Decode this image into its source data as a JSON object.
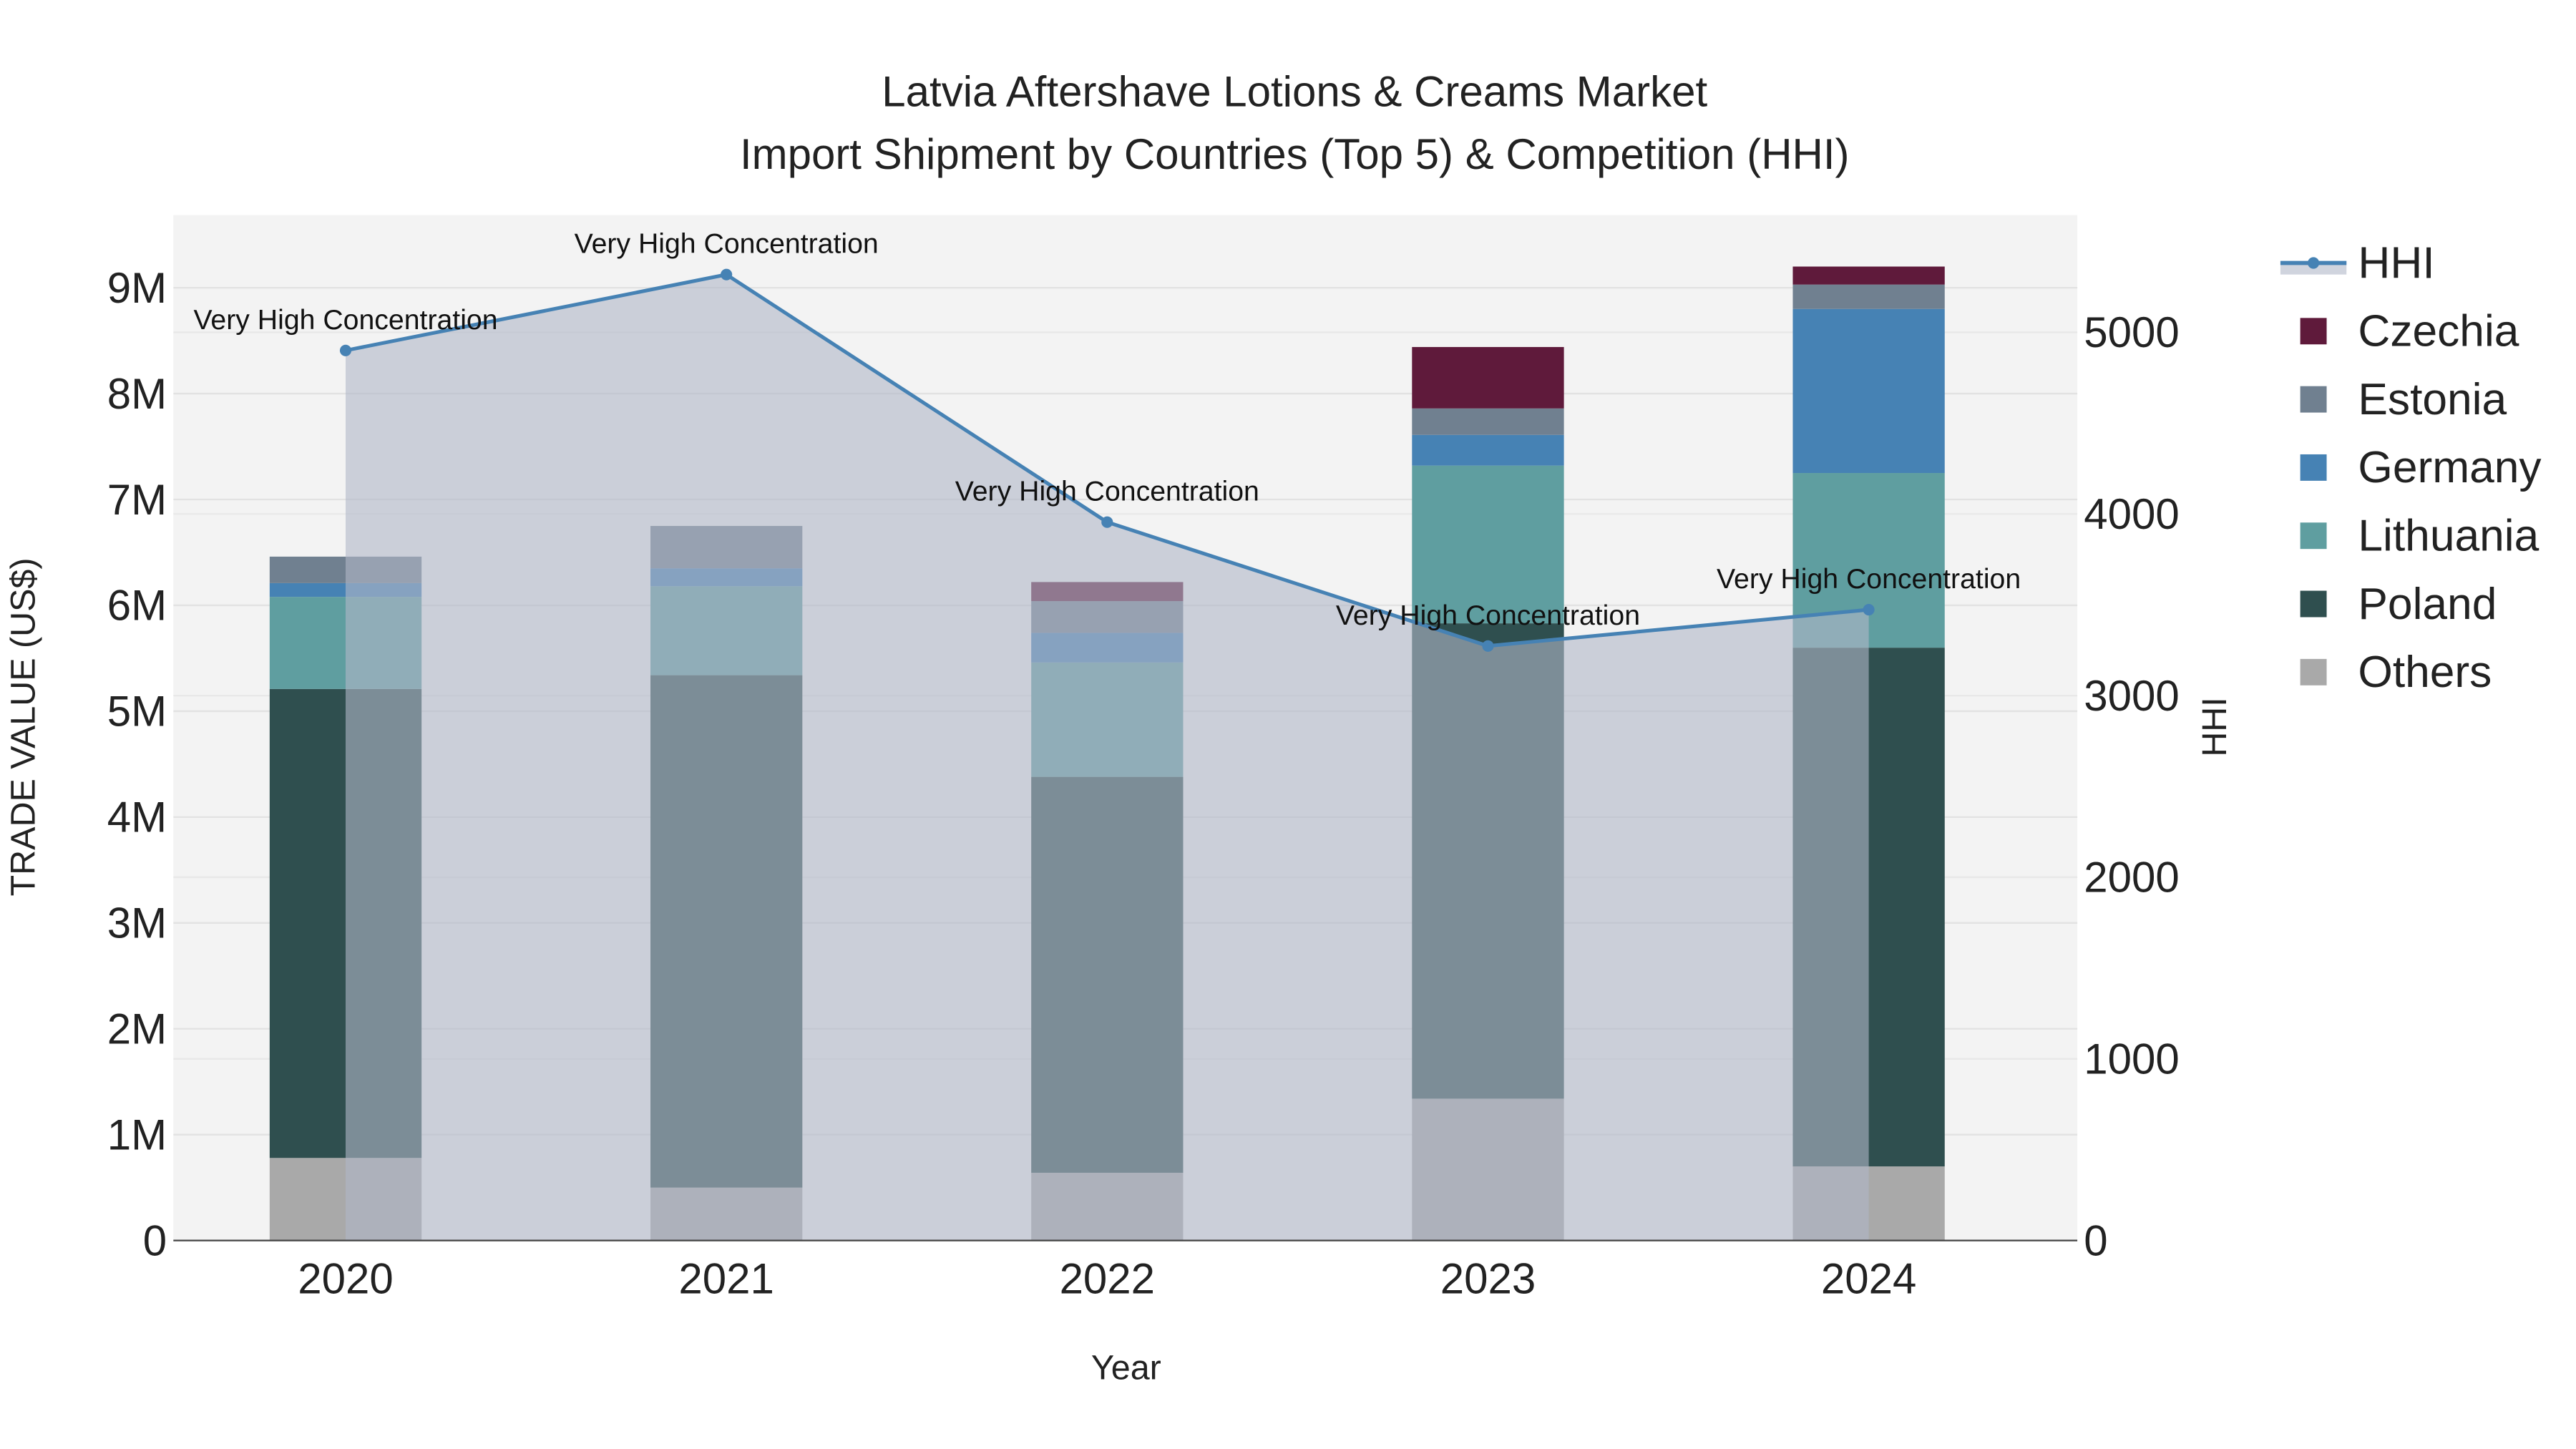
{
  "chart_data": {
    "type": "bar",
    "stacked": true,
    "title": "Latvia Aftershave Lotions & Creams Market",
    "subtitle": "Import Shipment by Countries (Top 5) & Competition (HHI)",
    "xlabel": "Year",
    "ylabel": "TRADE VALUE (US$)",
    "y2label": "HHI",
    "categories": [
      "2020",
      "2021",
      "2022",
      "2023",
      "2024"
    ],
    "ylim": [
      0,
      9700000
    ],
    "y2lim": [
      0,
      5640
    ],
    "yticks": [
      0,
      1000000,
      2000000,
      3000000,
      4000000,
      5000000,
      6000000,
      7000000,
      8000000,
      9000000
    ],
    "ytick_labels": [
      "0",
      "1M",
      "2M",
      "3M",
      "4M",
      "5M",
      "6M",
      "7M",
      "8M",
      "9M"
    ],
    "y2ticks": [
      0,
      1000,
      2000,
      3000,
      4000,
      5000
    ],
    "y2tick_labels": [
      "0",
      "1000",
      "2000",
      "3000",
      "4000",
      "5000"
    ],
    "grid": true,
    "legend_position": "right",
    "series": [
      {
        "name": "Others",
        "color": "#a9a9a9",
        "values": [
          780000,
          500000,
          640000,
          1340000,
          700000
        ]
      },
      {
        "name": "Poland",
        "color": "#2f4f4f",
        "values": [
          4430000,
          4840000,
          3740000,
          4490000,
          4900000
        ]
      },
      {
        "name": "Lithuania",
        "color": "#5f9ea0",
        "values": [
          870000,
          840000,
          1080000,
          1490000,
          1650000
        ]
      },
      {
        "name": "Germany",
        "color": "#4682b4",
        "values": [
          130000,
          170000,
          280000,
          290000,
          1550000
        ]
      },
      {
        "name": "Estonia",
        "color": "#708090",
        "values": [
          250000,
          400000,
          300000,
          250000,
          230000
        ]
      },
      {
        "name": "Czechia",
        "color": "#5f1a3b",
        "values": [
          0,
          0,
          180000,
          580000,
          170000
        ]
      }
    ],
    "line": {
      "name": "HHI",
      "color": "#4682b4",
      "fill": "rgba(176,184,200,0.6)",
      "values": [
        4900,
        5318,
        3955,
        3273,
        3473
      ],
      "annotations": [
        "Very High Concentration",
        "Very High Concentration",
        "Very High Concentration",
        "Very High Concentration",
        "Very High Concentration"
      ]
    },
    "legend": [
      "HHI",
      "Czechia",
      "Estonia",
      "Germany",
      "Lithuania",
      "Poland",
      "Others"
    ]
  }
}
